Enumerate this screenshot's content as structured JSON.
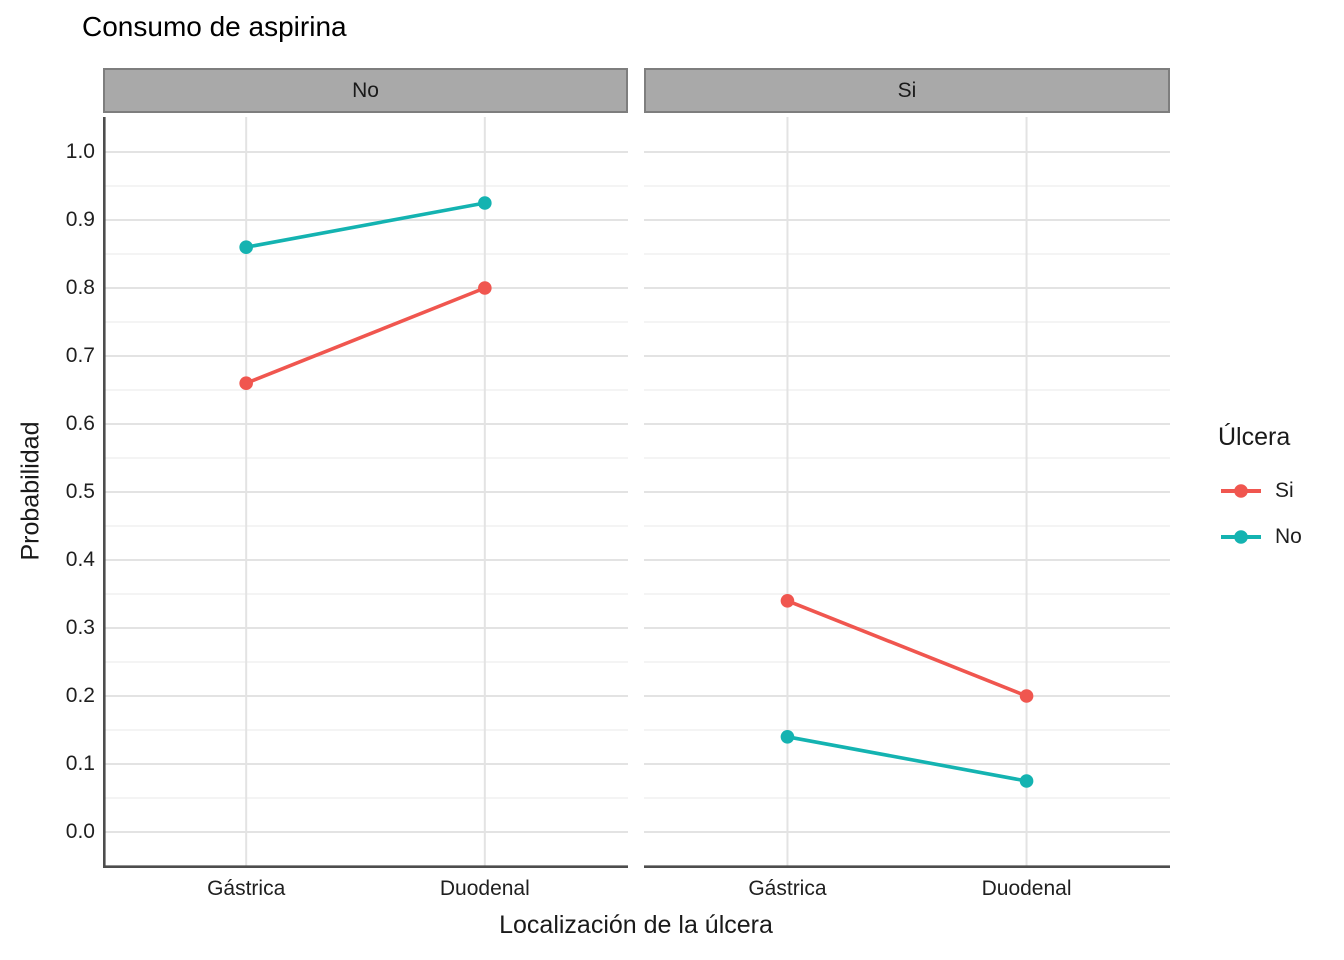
{
  "chart_data": {
    "type": "line",
    "title": "Consumo de aspirina",
    "ylabel": "Probabilidad",
    "xlabel": "Localización de la úlcera",
    "categories": [
      "Gástrica",
      "Duodenal"
    ],
    "ylim": [
      0.0,
      1.0
    ],
    "y_tick_step": 0.1,
    "y_tick_labels": [
      "0.0",
      "0.1",
      "0.2",
      "0.3",
      "0.4",
      "0.5",
      "0.6",
      "0.7",
      "0.8",
      "0.9",
      "1.0"
    ],
    "grid": "horizontal major and minor gridlines on; vertical major gridlines at each category; white panel background; gray facet strips",
    "legend": {
      "title": "Úlcera",
      "position": "right",
      "items": [
        {
          "label": "Si",
          "color": "#F0564F"
        },
        {
          "label": "No",
          "color": "#14B3B1"
        }
      ]
    },
    "facets": [
      {
        "label": "No",
        "series": [
          {
            "name": "Si",
            "color": "#F0564F",
            "values": [
              0.66,
              0.8
            ]
          },
          {
            "name": "No",
            "color": "#14B3B1",
            "values": [
              0.86,
              0.925
            ]
          }
        ]
      },
      {
        "label": "Si",
        "series": [
          {
            "name": "Si",
            "color": "#F0564F",
            "values": [
              0.34,
              0.2
            ]
          },
          {
            "name": "No",
            "color": "#14B3B1",
            "values": [
              0.14,
              0.075
            ]
          }
        ]
      }
    ]
  }
}
